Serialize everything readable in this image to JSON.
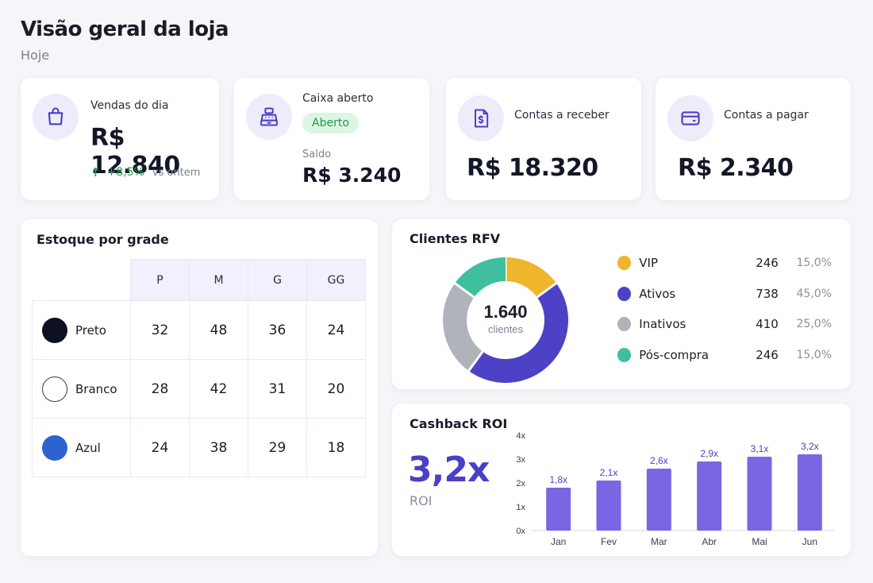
{
  "header": {
    "title": "Visão geral da loja",
    "subtitle": "Hoje"
  },
  "kpis": {
    "vendas": {
      "label": "Vendas do dia",
      "value": "R$ 12.840",
      "delta_arrow": "↑",
      "delta": "+8,5%",
      "delta_note": "vs ontem",
      "icon": "shopping-bag-icon"
    },
    "caixa": {
      "label": "Caixa aberto",
      "status": "Aberto",
      "saldo_label": "Saldo",
      "saldo_value": "R$ 3.240",
      "icon": "cash-register-icon"
    },
    "receber": {
      "label": "Contas a receber",
      "value": "R$ 18.320",
      "icon": "invoice-dollar-icon"
    },
    "pagar": {
      "label": "Contas a pagar",
      "value": "R$ 2.340",
      "icon": "credit-card-icon"
    }
  },
  "estoque": {
    "title": "Estoque por grade",
    "sizes": [
      "P",
      "M",
      "G",
      "GG"
    ],
    "rows": [
      {
        "color": "Preto",
        "swatch": "#0d1020",
        "values": [
          "32",
          "48",
          "36",
          "24"
        ]
      },
      {
        "color": "Branco",
        "swatch": "#ffffff",
        "values": [
          "28",
          "42",
          "31",
          "20"
        ]
      },
      {
        "color": "Azul",
        "swatch": "#2e62cf",
        "values": [
          "24",
          "38",
          "29",
          "18"
        ]
      }
    ]
  },
  "rfv": {
    "title": "Clientes RFV",
    "total": "1.640",
    "total_label": "clientes",
    "segments": [
      {
        "name": "VIP",
        "count": "246",
        "pct": "15,0%",
        "value": 15,
        "color": "#efb52b"
      },
      {
        "name": "Ativos",
        "count": "738",
        "pct": "45,0%",
        "value": 45,
        "color": "#4d41c6"
      },
      {
        "name": "Inativos",
        "count": "410",
        "pct": "25,0%",
        "value": 25,
        "color": "#b0b3ba"
      },
      {
        "name": "Pós-compra",
        "count": "246",
        "pct": "15,0%",
        "value": 15,
        "color": "#3fbf9e"
      }
    ]
  },
  "cashback": {
    "title": "Cashback ROI",
    "roi_value": "3,2x",
    "roi_label": "ROI"
  },
  "chart_data": {
    "type": "bar",
    "categories": [
      "Jan",
      "Fev",
      "Mar",
      "Abr",
      "Mai",
      "Jun"
    ],
    "values": [
      1.8,
      2.1,
      2.6,
      2.9,
      3.1,
      3.2
    ],
    "value_labels": [
      "1,8x",
      "2,1x",
      "2,6x",
      "2,9x",
      "3,1x",
      "3,2x"
    ],
    "ylim": [
      0,
      4
    ],
    "yticks": [
      "0x",
      "1x",
      "2x",
      "3x",
      "4x"
    ],
    "bar_color": "#7a66e3",
    "label_color": "#4a3fc7",
    "grid": false
  }
}
